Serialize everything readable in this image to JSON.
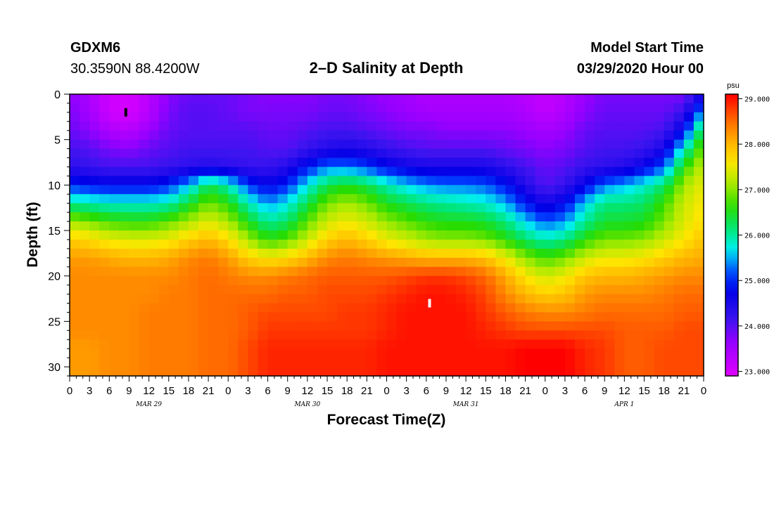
{
  "header": {
    "station": "GDXM6",
    "coords": "30.3590N 88.4200W",
    "title": "2–D Salinity at Depth",
    "model_start_label": "Model Start Time",
    "model_start_value": "03/29/2020 Hour 00"
  },
  "chart_data": {
    "type": "heatmap",
    "title": "2–D Salinity at Depth",
    "xlabel": "Forecast Time(Z)",
    "ylabel": "Depth (ft)",
    "x_hours_range": [
      0,
      96
    ],
    "y_range": [
      0,
      31
    ],
    "y_inverted": true,
    "x_tick_labels": [
      "0",
      "3",
      "6",
      "9",
      "12",
      "15",
      "18",
      "21",
      "0",
      "3",
      "6",
      "9",
      "12",
      "15",
      "18",
      "21",
      "0",
      "3",
      "6",
      "9",
      "12",
      "15",
      "18",
      "21",
      "0",
      "3",
      "6",
      "9",
      "12",
      "15",
      "18",
      "21",
      "0"
    ],
    "y_tick_labels": [
      "0",
      "5",
      "10",
      "15",
      "20",
      "25",
      "30"
    ],
    "day_labels": [
      {
        "label": "MAR 29",
        "hour": 12
      },
      {
        "label": "MAR 30",
        "hour": 36
      },
      {
        "label": "MAR 31",
        "hour": 60
      },
      {
        "label": "APR 1",
        "hour": 84
      }
    ],
    "colorbar": {
      "unit": "psu",
      "min": 22.9,
      "max": 29.1,
      "tick_labels": [
        "29.000",
        "28.000",
        "27.000",
        "26.000",
        "25.000",
        "24.000",
        "23.000"
      ],
      "tick_values": [
        29,
        28,
        27,
        26,
        25,
        24,
        23
      ]
    },
    "markers": [
      {
        "hour": 8.5,
        "depth": 2,
        "color": "#000000"
      },
      {
        "hour": 54.5,
        "depth": 23,
        "color": "#ffffff"
      }
    ],
    "value_grid_hours": [
      0,
      3,
      6,
      9,
      12,
      15,
      18,
      21,
      24,
      27,
      30,
      33,
      36,
      39,
      42,
      45,
      48,
      51,
      54,
      57,
      60,
      63,
      66,
      69,
      72,
      75,
      78,
      81,
      84,
      87,
      90,
      93,
      96
    ],
    "value_grid_depths": [
      0,
      2,
      4,
      6,
      8,
      10,
      12,
      14,
      16,
      18,
      20,
      22,
      24,
      26,
      28,
      30,
      31
    ],
    "values": [
      [
        23.7,
        23.4,
        23.1,
        23.0,
        23.3,
        23.7,
        23.9,
        23.9,
        23.9,
        23.8,
        23.7,
        23.7,
        23.7,
        23.8,
        23.8,
        23.7,
        23.6,
        23.5,
        23.4,
        23.4,
        23.4,
        23.4,
        23.4,
        23.3,
        23.2,
        23.3,
        23.6,
        23.8,
        23.8,
        23.8,
        23.8,
        23.8,
        24.5
      ],
      [
        23.8,
        23.5,
        23.1,
        23.0,
        23.3,
        23.8,
        24.0,
        24.0,
        23.9,
        23.8,
        23.8,
        23.8,
        23.8,
        23.9,
        23.9,
        23.8,
        23.7,
        23.6,
        23.5,
        23.5,
        23.5,
        23.5,
        23.5,
        23.4,
        23.2,
        23.4,
        23.7,
        23.9,
        23.9,
        23.9,
        23.9,
        24.2,
        25.5
      ],
      [
        23.9,
        23.7,
        23.4,
        23.3,
        23.6,
        23.9,
        24.0,
        24.0,
        24.0,
        24.0,
        23.9,
        23.9,
        24.0,
        24.1,
        24.1,
        24.0,
        23.9,
        23.8,
        23.8,
        23.7,
        23.7,
        23.7,
        23.7,
        23.6,
        23.5,
        23.6,
        23.9,
        24.0,
        24.0,
        24.0,
        24.1,
        24.8,
        26.5
      ],
      [
        24.1,
        24.0,
        23.8,
        23.7,
        23.9,
        24.0,
        24.1,
        24.1,
        24.1,
        24.1,
        24.0,
        24.0,
        24.2,
        24.4,
        24.5,
        24.4,
        24.2,
        24.1,
        24.0,
        24.0,
        24.0,
        24.0,
        23.9,
        23.8,
        23.7,
        23.8,
        24.0,
        24.1,
        24.1,
        24.2,
        24.5,
        25.8,
        27.0
      ],
      [
        24.3,
        24.2,
        24.1,
        24.1,
        24.1,
        24.2,
        24.3,
        24.4,
        24.3,
        24.2,
        24.2,
        24.4,
        24.9,
        25.3,
        25.3,
        25.1,
        24.8,
        24.6,
        24.5,
        24.5,
        24.5,
        24.5,
        24.3,
        24.1,
        23.9,
        24.0,
        24.2,
        24.3,
        24.4,
        24.7,
        25.2,
        26.6,
        27.3
      ],
      [
        25.0,
        24.9,
        24.8,
        24.8,
        24.8,
        25.0,
        25.5,
        26.3,
        25.9,
        25.1,
        24.7,
        25.0,
        25.7,
        26.3,
        26.5,
        26.3,
        25.9,
        25.6,
        25.4,
        25.3,
        25.3,
        25.2,
        24.9,
        24.4,
        24.0,
        24.2,
        24.7,
        25.3,
        25.5,
        25.8,
        26.2,
        27.1,
        27.5
      ],
      [
        26.0,
        25.9,
        25.8,
        25.8,
        25.8,
        25.9,
        26.4,
        26.9,
        26.6,
        25.9,
        25.4,
        25.7,
        26.3,
        26.9,
        27.1,
        26.9,
        26.5,
        26.3,
        26.1,
        26.0,
        25.9,
        25.8,
        25.5,
        24.9,
        24.5,
        24.8,
        25.6,
        26.1,
        26.1,
        26.2,
        26.7,
        27.3,
        27.6
      ],
      [
        27.1,
        26.9,
        26.7,
        26.6,
        26.6,
        26.8,
        27.1,
        27.4,
        27.1,
        26.5,
        26.0,
        26.2,
        26.8,
        27.3,
        27.5,
        27.3,
        27.0,
        26.8,
        26.6,
        26.5,
        26.5,
        26.4,
        26.1,
        25.6,
        25.2,
        25.4,
        26.0,
        26.4,
        26.4,
        26.5,
        26.9,
        27.4,
        27.7
      ],
      [
        27.8,
        27.7,
        27.5,
        27.4,
        27.4,
        27.5,
        27.8,
        28.0,
        27.7,
        27.1,
        26.6,
        26.8,
        27.3,
        27.8,
        28.0,
        27.8,
        27.5,
        27.3,
        27.1,
        27.0,
        27.0,
        26.9,
        26.6,
        26.2,
        25.9,
        26.1,
        26.6,
        26.9,
        26.9,
        27.0,
        27.3,
        27.6,
        27.9
      ],
      [
        28.2,
        28.2,
        28.1,
        28.0,
        28.0,
        28.1,
        28.3,
        28.4,
        28.2,
        27.8,
        27.6,
        27.7,
        28.0,
        28.3,
        28.4,
        28.3,
        28.2,
        28.1,
        28.0,
        28.0,
        28.0,
        27.9,
        27.5,
        27.0,
        26.7,
        26.9,
        27.3,
        27.5,
        27.5,
        27.6,
        27.8,
        28.0,
        28.1
      ],
      [
        28.3,
        28.3,
        28.3,
        28.3,
        28.3,
        28.3,
        28.4,
        28.5,
        28.4,
        28.3,
        28.3,
        28.4,
        28.5,
        28.6,
        28.6,
        28.6,
        28.6,
        28.7,
        28.8,
        28.8,
        28.7,
        28.5,
        28.1,
        27.6,
        27.3,
        27.5,
        27.9,
        28.0,
        28.0,
        28.1,
        28.2,
        28.3,
        28.3
      ],
      [
        28.3,
        28.3,
        28.3,
        28.3,
        28.3,
        28.4,
        28.4,
        28.5,
        28.5,
        28.5,
        28.5,
        28.6,
        28.6,
        28.7,
        28.7,
        28.7,
        28.8,
        28.9,
        29.0,
        29.0,
        28.9,
        28.7,
        28.3,
        28.0,
        27.8,
        27.9,
        28.2,
        28.3,
        28.3,
        28.3,
        28.4,
        28.5,
        28.5
      ],
      [
        28.3,
        28.3,
        28.3,
        28.3,
        28.4,
        28.4,
        28.4,
        28.5,
        28.5,
        28.6,
        28.7,
        28.7,
        28.7,
        28.7,
        28.8,
        28.8,
        28.9,
        29.0,
        29.0,
        29.0,
        29.0,
        28.8,
        28.6,
        28.4,
        28.3,
        28.3,
        28.4,
        28.5,
        28.5,
        28.5,
        28.5,
        28.6,
        28.6
      ],
      [
        28.3,
        28.3,
        28.3,
        28.3,
        28.4,
        28.4,
        28.4,
        28.5,
        28.5,
        28.6,
        28.8,
        28.8,
        28.8,
        28.8,
        28.8,
        28.8,
        28.9,
        29.0,
        29.0,
        29.0,
        29.0,
        28.9,
        28.8,
        28.7,
        28.7,
        28.7,
        28.7,
        28.7,
        28.6,
        28.6,
        28.6,
        28.7,
        28.7
      ],
      [
        28.2,
        28.2,
        28.3,
        28.3,
        28.4,
        28.4,
        28.4,
        28.5,
        28.5,
        28.7,
        28.9,
        28.9,
        28.9,
        28.9,
        28.9,
        28.9,
        29.0,
        29.0,
        29.0,
        29.0,
        29.0,
        29.0,
        29.0,
        29.1,
        29.1,
        29.1,
        28.9,
        28.8,
        28.6,
        28.6,
        28.7,
        28.7,
        28.7
      ],
      [
        28.2,
        28.2,
        28.3,
        28.3,
        28.4,
        28.4,
        28.4,
        28.5,
        28.5,
        28.7,
        28.9,
        28.9,
        28.9,
        28.9,
        28.9,
        28.9,
        29.0,
        29.0,
        29.0,
        29.0,
        29.0,
        29.0,
        29.0,
        29.1,
        29.1,
        29.1,
        28.9,
        28.8,
        28.6,
        28.6,
        28.7,
        28.7,
        28.7
      ],
      [
        28.2,
        28.2,
        28.3,
        28.3,
        28.4,
        28.4,
        28.4,
        28.5,
        28.5,
        28.7,
        28.9,
        28.9,
        28.9,
        28.9,
        28.9,
        28.9,
        29.0,
        29.0,
        29.0,
        29.0,
        29.0,
        29.0,
        29.0,
        29.1,
        29.1,
        29.1,
        28.9,
        28.8,
        28.6,
        28.6,
        28.7,
        28.7,
        28.7
      ]
    ]
  }
}
